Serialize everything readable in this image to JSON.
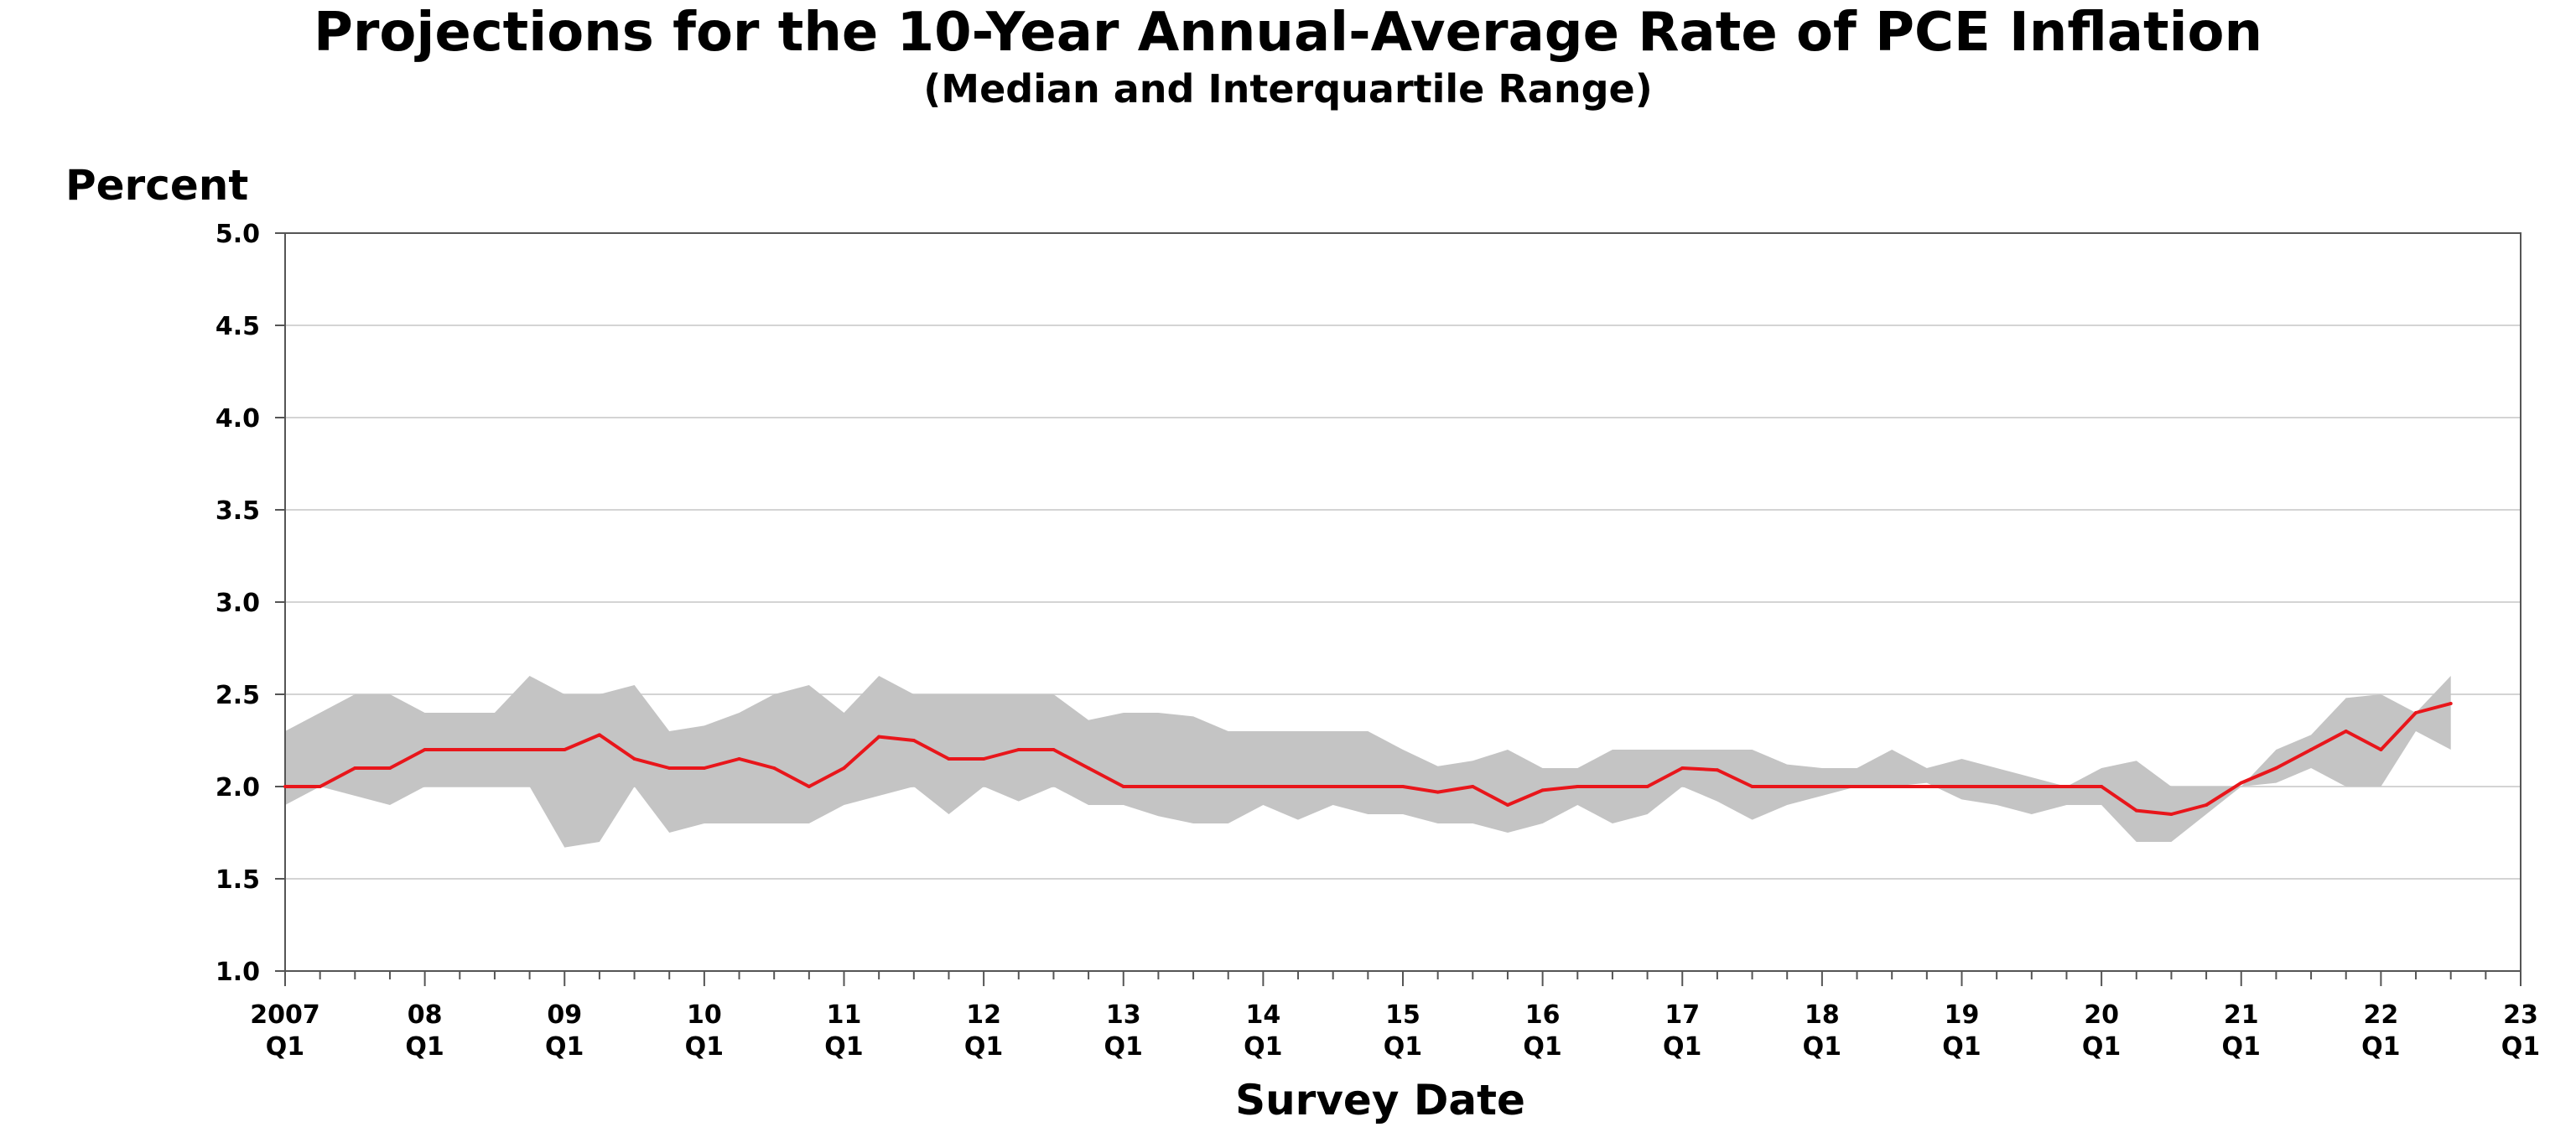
{
  "chart_data": {
    "type": "area",
    "title": "Projections for the 10-Year Annual-Average Rate of PCE Inflation",
    "subtitle": "(Median and Interquartile Range)",
    "ylabel": "Percent",
    "xlabel": "Survey Date",
    "ylim": [
      1.0,
      5.0
    ],
    "yticks": [
      "1.0",
      "1.5",
      "2.0",
      "2.5",
      "3.0",
      "3.5",
      "4.0",
      "4.5",
      "5.0"
    ],
    "xticks": [
      {
        "year": "2007",
        "q": "Q1"
      },
      {
        "year": "08",
        "q": "Q1"
      },
      {
        "year": "09",
        "q": "Q1"
      },
      {
        "year": "10",
        "q": "Q1"
      },
      {
        "year": "11",
        "q": "Q1"
      },
      {
        "year": "12",
        "q": "Q1"
      },
      {
        "year": "13",
        "q": "Q1"
      },
      {
        "year": "14",
        "q": "Q1"
      },
      {
        "year": "15",
        "q": "Q1"
      },
      {
        "year": "16",
        "q": "Q1"
      },
      {
        "year": "17",
        "q": "Q1"
      },
      {
        "year": "18",
        "q": "Q1"
      },
      {
        "year": "19",
        "q": "Q1"
      },
      {
        "year": "20",
        "q": "Q1"
      },
      {
        "year": "21",
        "q": "Q1"
      },
      {
        "year": "22",
        "q": "Q1"
      },
      {
        "year": "23",
        "q": "Q1"
      }
    ],
    "xlim": [
      "2007 Q1",
      "2023 Q1"
    ],
    "grid": true,
    "colors": {
      "median": "#e8161b",
      "range": "#c4c4c4",
      "grid": "#d4d4d4",
      "axis": "#555555"
    },
    "x": [
      "2007 Q1",
      "2007 Q2",
      "2007 Q3",
      "2007 Q4",
      "2008 Q1",
      "2008 Q2",
      "2008 Q3",
      "2008 Q4",
      "2009 Q1",
      "2009 Q2",
      "2009 Q3",
      "2009 Q4",
      "2010 Q1",
      "2010 Q2",
      "2010 Q3",
      "2010 Q4",
      "2011 Q1",
      "2011 Q2",
      "2011 Q3",
      "2011 Q4",
      "2012 Q1",
      "2012 Q2",
      "2012 Q3",
      "2012 Q4",
      "2013 Q1",
      "2013 Q2",
      "2013 Q3",
      "2013 Q4",
      "2014 Q1",
      "2014 Q2",
      "2014 Q3",
      "2014 Q4",
      "2015 Q1",
      "2015 Q2",
      "2015 Q3",
      "2015 Q4",
      "2016 Q1",
      "2016 Q2",
      "2016 Q3",
      "2016 Q4",
      "2017 Q1",
      "2017 Q2",
      "2017 Q3",
      "2017 Q4",
      "2018 Q1",
      "2018 Q2",
      "2018 Q3",
      "2018 Q4",
      "2019 Q1",
      "2019 Q2",
      "2019 Q3",
      "2019 Q4",
      "2020 Q1",
      "2020 Q2",
      "2020 Q3",
      "2020 Q4",
      "2021 Q1",
      "2021 Q2",
      "2021 Q3",
      "2021 Q4",
      "2022 Q1",
      "2022 Q2",
      "2022 Q3"
    ],
    "series": [
      {
        "role": "median",
        "values": [
          2.0,
          2.0,
          2.1,
          2.1,
          2.2,
          2.2,
          2.2,
          2.2,
          2.2,
          2.28,
          2.15,
          2.1,
          2.1,
          2.15,
          2.1,
          2.0,
          2.1,
          2.27,
          2.25,
          2.15,
          2.15,
          2.2,
          2.2,
          2.1,
          2.0,
          2.0,
          2.0,
          2.0,
          2.0,
          2.0,
          2.0,
          2.0,
          2.0,
          1.97,
          2.0,
          1.9,
          1.98,
          2.0,
          2.0,
          2.0,
          2.1,
          2.09,
          2.0,
          2.0,
          2.0,
          2.0,
          2.0,
          2.0,
          2.0,
          2.0,
          2.0,
          2.0,
          2.0,
          1.87,
          1.85,
          1.9,
          2.02,
          2.1,
          2.2,
          2.3,
          2.2,
          2.4,
          2.45
        ]
      },
      {
        "role": "lower-quartile",
        "values": [
          1.9,
          2.0,
          1.95,
          1.9,
          2.0,
          2.0,
          2.0,
          2.0,
          1.67,
          1.7,
          2.0,
          1.75,
          1.8,
          1.8,
          1.8,
          1.8,
          1.9,
          1.95,
          2.0,
          1.85,
          2.0,
          1.92,
          2.0,
          1.9,
          1.9,
          1.84,
          1.8,
          1.8,
          1.9,
          1.82,
          1.9,
          1.85,
          1.85,
          1.8,
          1.8,
          1.75,
          1.8,
          1.9,
          1.8,
          1.85,
          2.0,
          1.92,
          1.82,
          1.9,
          1.95,
          2.0,
          2.0,
          2.02,
          1.93,
          1.9,
          1.85,
          1.9,
          1.9,
          1.7,
          1.7,
          1.85,
          2.0,
          2.02,
          2.1,
          2.0,
          2.0,
          2.3,
          2.2
        ]
      },
      {
        "role": "upper-quartile",
        "values": [
          2.3,
          2.4,
          2.5,
          2.5,
          2.4,
          2.4,
          2.4,
          2.6,
          2.5,
          2.5,
          2.55,
          2.3,
          2.33,
          2.4,
          2.5,
          2.55,
          2.4,
          2.6,
          2.5,
          2.5,
          2.5,
          2.5,
          2.5,
          2.36,
          2.4,
          2.4,
          2.38,
          2.3,
          2.3,
          2.3,
          2.3,
          2.3,
          2.2,
          2.11,
          2.14,
          2.2,
          2.1,
          2.1,
          2.2,
          2.2,
          2.2,
          2.2,
          2.2,
          2.12,
          2.1,
          2.1,
          2.2,
          2.1,
          2.15,
          2.1,
          2.05,
          2.0,
          2.1,
          2.14,
          2.0,
          2.0,
          2.0,
          2.2,
          2.28,
          2.48,
          2.5,
          2.4,
          2.6
        ]
      }
    ]
  }
}
